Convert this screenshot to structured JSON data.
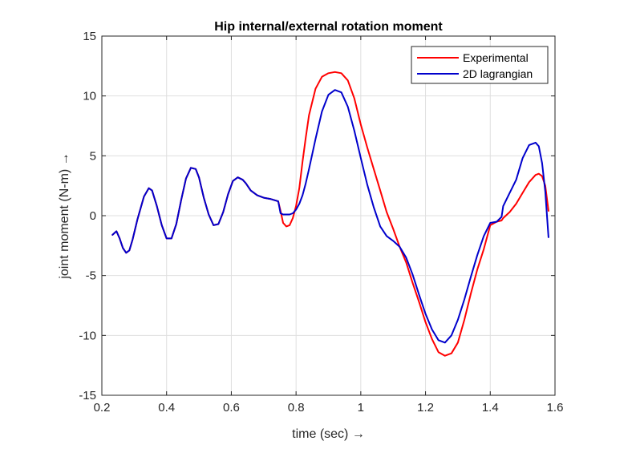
{
  "chart_data": {
    "type": "line",
    "title": "Hip internal/external rotation moment",
    "xlabel": "time (sec) →",
    "ylabel": "joint moment (N-m) →",
    "xlim": [
      0.2,
      1.6
    ],
    "ylim": [
      -15,
      15
    ],
    "xticks": [
      0.2,
      0.4,
      0.6,
      0.8,
      1,
      1.2,
      1.4,
      1.6
    ],
    "xtick_labels": [
      "0.2",
      "0.4",
      "0.6",
      "0.8",
      "1",
      "1.2",
      "1.4",
      "1.6"
    ],
    "yticks": [
      -15,
      -10,
      -5,
      0,
      5,
      10,
      15
    ],
    "ytick_labels": [
      "-15",
      "-10",
      "-5",
      "0",
      "5",
      "10",
      "15"
    ],
    "grid": true,
    "legend_position": "top-right",
    "series": [
      {
        "name": "Experimental",
        "color": "#ff0000",
        "x": [
          0.233,
          0.245,
          0.255,
          0.265,
          0.275,
          0.285,
          0.295,
          0.31,
          0.33,
          0.345,
          0.355,
          0.37,
          0.385,
          0.4,
          0.415,
          0.43,
          0.445,
          0.46,
          0.475,
          0.49,
          0.5,
          0.515,
          0.53,
          0.545,
          0.56,
          0.575,
          0.59,
          0.605,
          0.62,
          0.635,
          0.645,
          0.66,
          0.68,
          0.7,
          0.72,
          0.745,
          0.752,
          0.76,
          0.77,
          0.78,
          0.79,
          0.8,
          0.81,
          0.82,
          0.83,
          0.84,
          0.86,
          0.88,
          0.9,
          0.92,
          0.94,
          0.96,
          0.98,
          1.0,
          1.02,
          1.04,
          1.06,
          1.08,
          1.1,
          1.12,
          1.14,
          1.16,
          1.18,
          1.2,
          1.22,
          1.24,
          1.26,
          1.28,
          1.3,
          1.32,
          1.34,
          1.36,
          1.38,
          1.4,
          1.42,
          1.435,
          1.44,
          1.46,
          1.48,
          1.5,
          1.52,
          1.54,
          1.55,
          1.56,
          1.57,
          1.58
        ],
        "y": [
          -1.6,
          -1.3,
          -1.9,
          -2.7,
          -3.1,
          -2.9,
          -2.0,
          -0.3,
          1.6,
          2.3,
          2.1,
          0.8,
          -0.8,
          -1.9,
          -1.9,
          -0.7,
          1.3,
          3.1,
          4.0,
          3.9,
          3.2,
          1.5,
          0.1,
          -0.8,
          -0.7,
          0.3,
          1.8,
          2.9,
          3.2,
          3.0,
          2.7,
          2.1,
          1.7,
          1.5,
          1.4,
          1.2,
          0.4,
          -0.6,
          -0.9,
          -0.8,
          -0.2,
          0.8,
          2.3,
          4.5,
          6.5,
          8.4,
          10.6,
          11.6,
          11.9,
          12.0,
          11.9,
          11.3,
          9.8,
          7.6,
          5.7,
          3.9,
          2.1,
          0.3,
          -1.1,
          -2.6,
          -3.9,
          -5.6,
          -7.2,
          -8.9,
          -10.3,
          -11.4,
          -11.7,
          -11.5,
          -10.6,
          -8.7,
          -6.5,
          -4.5,
          -2.8,
          -0.8,
          -0.5,
          -0.4,
          -0.2,
          0.3,
          1.0,
          1.9,
          2.8,
          3.4,
          3.5,
          3.3,
          2.5,
          0.4
        ]
      },
      {
        "name": "2D lagrangian",
        "color": "#0000cc",
        "x": [
          0.233,
          0.245,
          0.255,
          0.265,
          0.275,
          0.285,
          0.295,
          0.31,
          0.33,
          0.345,
          0.355,
          0.37,
          0.385,
          0.4,
          0.415,
          0.43,
          0.445,
          0.46,
          0.475,
          0.49,
          0.5,
          0.515,
          0.53,
          0.545,
          0.56,
          0.575,
          0.59,
          0.605,
          0.62,
          0.635,
          0.645,
          0.66,
          0.68,
          0.7,
          0.72,
          0.745,
          0.752,
          0.76,
          0.77,
          0.78,
          0.79,
          0.8,
          0.81,
          0.82,
          0.83,
          0.84,
          0.86,
          0.88,
          0.9,
          0.92,
          0.94,
          0.96,
          0.98,
          1.0,
          1.02,
          1.04,
          1.06,
          1.08,
          1.1,
          1.12,
          1.14,
          1.16,
          1.18,
          1.2,
          1.22,
          1.24,
          1.26,
          1.28,
          1.3,
          1.32,
          1.34,
          1.36,
          1.38,
          1.4,
          1.42,
          1.435,
          1.44,
          1.46,
          1.48,
          1.5,
          1.52,
          1.54,
          1.55,
          1.56,
          1.57,
          1.58
        ],
        "y": [
          -1.6,
          -1.3,
          -1.9,
          -2.7,
          -3.1,
          -2.9,
          -2.0,
          -0.3,
          1.6,
          2.3,
          2.1,
          0.8,
          -0.8,
          -1.9,
          -1.9,
          -0.7,
          1.3,
          3.1,
          4.0,
          3.9,
          3.2,
          1.5,
          0.1,
          -0.8,
          -0.7,
          0.3,
          1.8,
          2.9,
          3.2,
          3.0,
          2.7,
          2.1,
          1.7,
          1.5,
          1.4,
          1.2,
          0.2,
          0.1,
          0.1,
          0.1,
          0.2,
          0.5,
          1.0,
          1.7,
          2.7,
          3.9,
          6.4,
          8.7,
          10.1,
          10.5,
          10.3,
          9.1,
          7.1,
          4.8,
          2.6,
          0.7,
          -0.9,
          -1.7,
          -2.1,
          -2.6,
          -3.5,
          -4.9,
          -6.6,
          -8.2,
          -9.5,
          -10.4,
          -10.6,
          -10.0,
          -8.7,
          -7.0,
          -5.1,
          -3.3,
          -1.7,
          -0.6,
          -0.5,
          -0.1,
          0.8,
          1.9,
          3.0,
          4.8,
          5.9,
          6.1,
          5.8,
          4.4,
          2.0,
          -1.8
        ]
      }
    ]
  }
}
